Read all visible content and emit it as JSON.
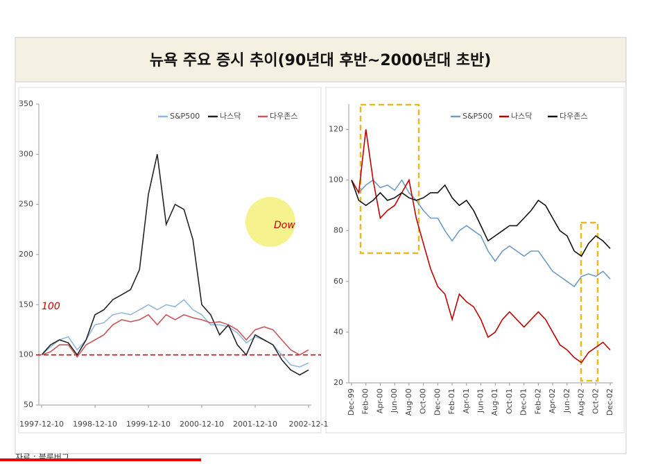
{
  "slide": {
    "title": "뉴욕 주요 증시 추이(90년대 후반~2000년대 초반)",
    "source": "자료 : 블룸버그"
  },
  "chart_data": [
    {
      "type": "line",
      "categories": [
        "1997-12-10",
        null,
        null,
        null,
        null,
        null,
        "1998-12-10",
        null,
        null,
        null,
        null,
        null,
        "1999-12-10",
        null,
        null,
        null,
        null,
        null,
        "2000-12-10",
        null,
        null,
        null,
        null,
        null,
        "2001-12-10",
        null,
        null,
        null,
        null,
        null,
        "2002-12-1"
      ],
      "series": [
        {
          "name": "S&P500",
          "color": "#93b7dc",
          "values": [
            100,
            108,
            115,
            118,
            105,
            115,
            130,
            132,
            140,
            142,
            140,
            145,
            150,
            145,
            150,
            148,
            155,
            145,
            140,
            130,
            130,
            128,
            122,
            112,
            118,
            115,
            110,
            100,
            90,
            88,
            92
          ]
        },
        {
          "name": "나스닥",
          "color": "#222222",
          "values": [
            100,
            110,
            115,
            112,
            100,
            115,
            140,
            145,
            155,
            160,
            165,
            185,
            260,
            300,
            230,
            250,
            245,
            215,
            150,
            140,
            120,
            130,
            110,
            100,
            120,
            115,
            110,
            95,
            85,
            80,
            85
          ]
        },
        {
          "name": "다우존스",
          "color": "#c8565a",
          "values": [
            100,
            103,
            110,
            110,
            98,
            110,
            115,
            120,
            130,
            135,
            133,
            135,
            140,
            130,
            140,
            135,
            140,
            137,
            135,
            132,
            133,
            130,
            125,
            115,
            125,
            128,
            125,
            115,
            105,
            100,
            105
          ]
        }
      ],
      "ylim": [
        50,
        350
      ],
      "yticks": [
        50,
        100,
        150,
        200,
        250,
        300,
        350
      ],
      "hline": 100,
      "annotations": [
        "100",
        "Dow"
      ]
    },
    {
      "type": "line",
      "categories": [
        "Dec-99",
        null,
        "Feb-00",
        null,
        "Apr-00",
        null,
        "Jun-00",
        null,
        "Aug-00",
        null,
        "Oct-00",
        null,
        "Dec-00",
        null,
        "Feb-01",
        null,
        "Apr-01",
        null,
        "Jun-01",
        null,
        "Aug-01",
        null,
        "Oct-01",
        null,
        "Dec-01",
        null,
        "Feb-02",
        null,
        "Apr-02",
        null,
        "Jun-02",
        null,
        "Aug-02",
        null,
        "Oct-02",
        null,
        "Dec-02"
      ],
      "series": [
        {
          "name": "S&P500",
          "color": "#6d9bc3",
          "values": [
            100,
            95,
            98,
            100,
            97,
            98,
            96,
            100,
            95,
            92,
            88,
            85,
            85,
            80,
            76,
            80,
            82,
            80,
            78,
            72,
            68,
            72,
            74,
            72,
            70,
            72,
            72,
            68,
            64,
            62,
            60,
            58,
            62,
            63,
            62,
            64,
            61
          ]
        },
        {
          "name": "나스닥",
          "color": "#c00000",
          "values": [
            100,
            95,
            120,
            100,
            85,
            88,
            90,
            95,
            100,
            85,
            75,
            65,
            58,
            55,
            45,
            55,
            52,
            50,
            45,
            38,
            40,
            45,
            48,
            45,
            42,
            45,
            48,
            45,
            40,
            35,
            33,
            30,
            28,
            32,
            34,
            36,
            33
          ]
        },
        {
          "name": "다우존스",
          "color": "#111111",
          "values": [
            100,
            92,
            90,
            92,
            95,
            92,
            93,
            95,
            93,
            92,
            93,
            95,
            95,
            98,
            93,
            90,
            92,
            88,
            82,
            76,
            78,
            80,
            82,
            82,
            85,
            88,
            92,
            90,
            85,
            80,
            78,
            72,
            70,
            75,
            78,
            76,
            73
          ]
        }
      ],
      "ylim": [
        20,
        130
      ],
      "yticks": [
        20,
        40,
        60,
        80,
        100,
        120
      ]
    }
  ]
}
